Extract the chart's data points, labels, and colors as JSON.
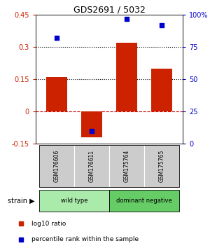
{
  "title": "GDS2691 / 5032",
  "samples": [
    "GSM176606",
    "GSM176611",
    "GSM175764",
    "GSM175765"
  ],
  "log10_ratio": [
    0.16,
    -0.12,
    0.32,
    0.2
  ],
  "percentile_rank": [
    82,
    10,
    97,
    92
  ],
  "bar_color": "#cc2200",
  "dot_color": "#0000cc",
  "left_ylim": [
    -0.15,
    0.45
  ],
  "right_ylim": [
    0,
    100
  ],
  "left_yticks": [
    -0.15,
    0,
    0.15,
    0.3,
    0.45
  ],
  "right_yticks": [
    0,
    25,
    50,
    75,
    100
  ],
  "right_tick_labels": [
    "0",
    "25",
    "50",
    "75",
    "100%"
  ],
  "hlines_dotted": [
    0.15,
    0.3
  ],
  "hline_dashed": 0.0,
  "groups": [
    {
      "label": "wild type",
      "samples": [
        0,
        1
      ],
      "color": "#aaeaaa"
    },
    {
      "label": "dominant negative",
      "samples": [
        2,
        3
      ],
      "color": "#66cc66"
    }
  ],
  "strain_label": "strain",
  "legend_bar_label": "log10 ratio",
  "legend_dot_label": "percentile rank within the sample",
  "ylabel_left_color": "#cc2200",
  "ylabel_right_color": "#0000cc",
  "bar_width": 0.6,
  "sample_box_color": "#cccccc",
  "background_color": "#ffffff"
}
